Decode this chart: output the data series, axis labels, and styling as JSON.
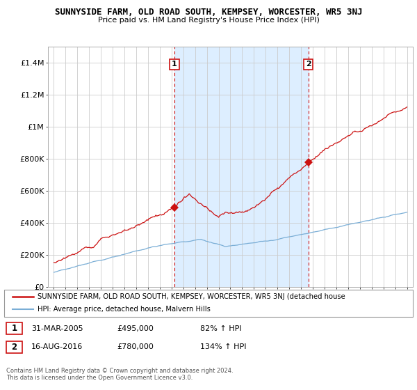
{
  "title": "SUNNYSIDE FARM, OLD ROAD SOUTH, KEMPSEY, WORCESTER, WR5 3NJ",
  "subtitle": "Price paid vs. HM Land Registry's House Price Index (HPI)",
  "legend_line1": "SUNNYSIDE FARM, OLD ROAD SOUTH, KEMPSEY, WORCESTER, WR5 3NJ (detached house",
  "legend_line2": "HPI: Average price, detached house, Malvern Hills",
  "annotation1_label": "1",
  "annotation1_date": "31-MAR-2005",
  "annotation1_price": "£495,000",
  "annotation1_hpi": "82% ↑ HPI",
  "annotation2_label": "2",
  "annotation2_date": "16-AUG-2016",
  "annotation2_price": "£780,000",
  "annotation2_hpi": "134% ↑ HPI",
  "footer": "Contains HM Land Registry data © Crown copyright and database right 2024.\nThis data is licensed under the Open Government Licence v3.0.",
  "sale1_x": 2005.25,
  "sale1_y": 495000,
  "sale2_x": 2016.62,
  "sale2_y": 780000,
  "hpi_color": "#7aaed6",
  "price_color": "#cc1111",
  "shade_color": "#ddeeff",
  "background_color": "#ffffff",
  "grid_color": "#cccccc",
  "ylim": [
    0,
    1500000
  ],
  "xlim": [
    1994.5,
    2025.5
  ],
  "yticks": [
    0,
    200000,
    400000,
    600000,
    800000,
    1000000,
    1200000,
    1400000
  ],
  "ytick_labels": [
    "£0",
    "£200K",
    "£400K",
    "£600K",
    "£800K",
    "£1M",
    "£1.2M",
    "£1.4M"
  ],
  "xtick_years": [
    1995,
    1996,
    1997,
    1998,
    1999,
    2000,
    2001,
    2002,
    2003,
    2004,
    2005,
    2006,
    2007,
    2008,
    2009,
    2010,
    2011,
    2012,
    2013,
    2014,
    2015,
    2016,
    2017,
    2018,
    2019,
    2020,
    2021,
    2022,
    2023,
    2024,
    2025
  ]
}
